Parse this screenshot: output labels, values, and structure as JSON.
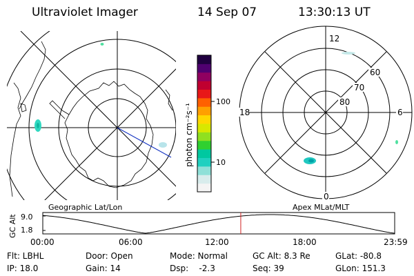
{
  "header": {
    "instrument": "Ultraviolet Imager",
    "date": "14 Sep 07",
    "time": "13:30:13 UT"
  },
  "colorbar": {
    "unit_label": "photon cm⁻²s⁻¹",
    "tick_labels": [
      "100",
      "10"
    ],
    "colors": [
      "#f4f4f4",
      "#d8ecec",
      "#8fe0d8",
      "#20d0c0",
      "#00c8a0",
      "#30d030",
      "#90e020",
      "#d8e800",
      "#ffd800",
      "#ffa000",
      "#ff6000",
      "#e81818",
      "#c00030",
      "#900060",
      "#500070",
      "#200040"
    ]
  },
  "left_panel": {
    "caption": "Geographic Lat/Lon"
  },
  "right_panel": {
    "caption": "Apex MLat/MLT",
    "mlt_labels": {
      "top": "12",
      "bottom": "0",
      "left": "18",
      "right": "6"
    },
    "mlat_labels": [
      "60",
      "70",
      "80"
    ]
  },
  "altitude_plot": {
    "ylabel": "GC Alt",
    "y_ticks": [
      "9.0",
      "1.8"
    ],
    "x_ticks": [
      "00:00",
      "06:00",
      "12:00",
      "18:00",
      "23:59"
    ],
    "current_time_hours": 13.503
  },
  "info": {
    "flt": "Flt: LBHL",
    "ip": "IP: 18.0",
    "door": "Door: Open",
    "gain": "Gain: 14",
    "mode": "Mode: Normal",
    "dsp": "Dsp:    -2.3",
    "gc_alt": "GC Alt: 8.3 Re",
    "seq": "Seq: 39",
    "glat": "GLat: -80.8",
    "glon": "GLon: 151.3"
  }
}
